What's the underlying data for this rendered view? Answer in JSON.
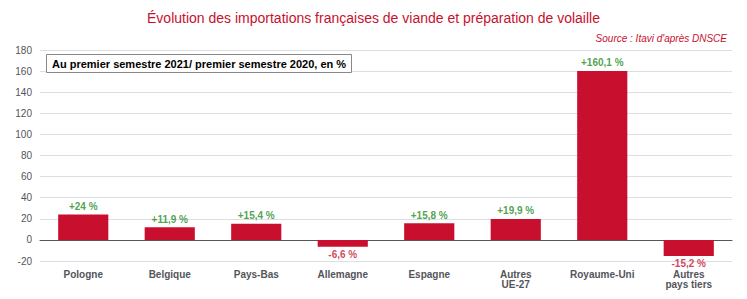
{
  "chart_data": {
    "type": "bar",
    "title": "Évolution des importations françaises de viande et préparation de volaille",
    "subtitle": "Au premier semestre 2021/ premier semestre 2020, en %",
    "annotations": [
      "Source : Itavi d'après DNSCE"
    ],
    "categories": [
      "Pologne",
      "Belgique",
      "Pays-Bas",
      "Allemagne",
      "Espagne",
      "Autres\nUE-27",
      "Royaume-Uni",
      "Autres\npays tiers"
    ],
    "values": [
      24,
      11.9,
      15.4,
      -6.6,
      15.8,
      19.9,
      160.1,
      -15.2
    ],
    "value_labels": [
      "+24 %",
      "+11,9 %",
      "+15,4 %",
      "-6,6 %",
      "+15,8 %",
      "+19,9 %",
      "+160,1 %",
      "-15,2 %"
    ],
    "data_labels": true,
    "color": "#c8102e",
    "ylim": [
      -20,
      180
    ],
    "yticks": [
      -20,
      0,
      20,
      40,
      60,
      80,
      100,
      120,
      140,
      160,
      180
    ],
    "grid": true
  }
}
